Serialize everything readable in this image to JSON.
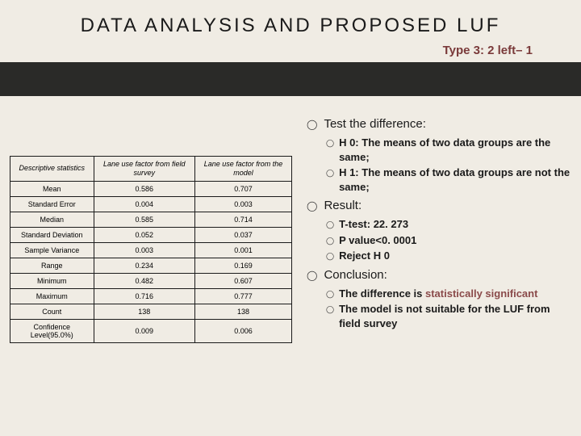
{
  "header": {
    "title": "DATA ANALYSIS AND PROPOSED LUF",
    "subtitle": "Type 3: 2 left– 1"
  },
  "table": {
    "columns": [
      "Descriptive statistics",
      "Lane use factor from field survey",
      "Lane use factor from the model"
    ],
    "rows": [
      [
        "Mean",
        "0.586",
        "0.707"
      ],
      [
        "Standard Error",
        "0.004",
        "0.003"
      ],
      [
        "Median",
        "0.585",
        "0.714"
      ],
      [
        "Standard Deviation",
        "0.052",
        "0.037"
      ],
      [
        "Sample Variance",
        "0.003",
        "0.001"
      ],
      [
        "Range",
        "0.234",
        "0.169"
      ],
      [
        "Minimum",
        "0.482",
        "0.607"
      ],
      [
        "Maximum",
        "0.716",
        "0.777"
      ],
      [
        "Count",
        "138",
        "138"
      ],
      [
        "Confidence Level(95.0%)",
        "0.009",
        "0.006"
      ]
    ]
  },
  "bullets": {
    "test_diff": "Test the difference:",
    "h0": "H 0: The means of two data groups are the same;",
    "h1": "H 1: The means of two data groups are not the same;",
    "result": "Result:",
    "ttest": "T-test: 22. 273",
    "pval": "P value<0. 0001",
    "reject": "Reject H 0",
    "conclusion": "Conclusion:",
    "diff_prefix": "The difference is ",
    "diff_highlight": "statistically significant",
    "not_suitable": "The model is not suitable for the LUF from field survey"
  },
  "style": {
    "bg": "#f0ece4",
    "band": "#2a2a28",
    "subtitle_color": "#7a3a3a",
    "stat_color": "#8a4a4a"
  }
}
